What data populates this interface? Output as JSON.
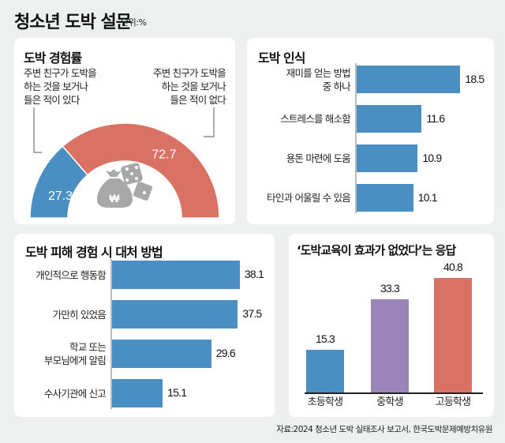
{
  "header": {
    "title": "청소년 도박 설문",
    "unit": "단위:%"
  },
  "colors": {
    "blue": "#4a8fc2",
    "red": "#d97265",
    "purple": "#9b84b8",
    "icon_gray": "#a8a8a8"
  },
  "chart_data": [
    {
      "type": "pie",
      "variant": "half-donut",
      "title": "도박 경험률",
      "slices": [
        {
          "label": "주변 친구가 도박을 하는 것을 보거나 들은 적이 있다",
          "label_lines": [
            "주변 친구가 도박을",
            "하는 것을 보거나",
            "들은 적이 있다"
          ],
          "value": 27.3,
          "value_label": "27.3",
          "color": "#4a8fc2"
        },
        {
          "label": "주변 친구가 도박을 하는 것을 보거나 들은 적이 없다",
          "label_lines": [
            "주변 친구가 도박을",
            "하는 것을 보거나",
            "들은 적이 없다"
          ],
          "value": 72.7,
          "value_label": "72.7",
          "color": "#d97265"
        }
      ],
      "center_icon": "money-bag-and-dice-icon"
    },
    {
      "type": "bar",
      "orientation": "horizontal",
      "title": "도박 인식",
      "categories": [
        "재미를 얻는 방법 중 하나",
        "스트레스를 해소함",
        "용돈 마련에 도움",
        "타인과 어울릴 수 있음"
      ],
      "category_lines": [
        [
          "재미를 얻는 방법",
          "중 하나"
        ],
        [
          "스트레스를 해소함"
        ],
        [
          "용돈 마련에 도움"
        ],
        [
          "타인과 어울릴 수 있음"
        ]
      ],
      "values": [
        18.5,
        11.6,
        10.9,
        10.1
      ],
      "value_labels": [
        "18.5",
        "11.6",
        "10.9",
        "10.1"
      ],
      "color": "#4a8fc2"
    },
    {
      "type": "bar",
      "orientation": "horizontal",
      "title": "도박 피해 경험 시 대처 방법",
      "categories": [
        "개인적으로 행동함",
        "가만히 있었음",
        "학교 또는 부모님에게 알림",
        "수사기관에 신고"
      ],
      "category_lines": [
        [
          "개인적으로 행동함"
        ],
        [
          "가만히 있었음"
        ],
        [
          "학교 또는",
          "부모님에게 알림"
        ],
        [
          "수사기관에 신고"
        ]
      ],
      "values": [
        38.1,
        37.5,
        29.6,
        15.1
      ],
      "value_labels": [
        "38.1",
        "37.5",
        "29.6",
        "15.1"
      ],
      "color": "#4a8fc2"
    },
    {
      "type": "bar",
      "orientation": "vertical",
      "title": "‘도박교육이 효과가 없었다’는 응답",
      "categories": [
        "초등학생",
        "중학생",
        "고등학생"
      ],
      "values": [
        15.3,
        33.3,
        40.8
      ],
      "value_labels": [
        "15.3",
        "33.3",
        "40.8"
      ],
      "colors": [
        "#4a8fc2",
        "#9b84b8",
        "#d97265"
      ]
    }
  ],
  "footer": {
    "source": "자료:2024 청소년 도박 실태조사 보고서, 한국도박문제예방치유원"
  }
}
